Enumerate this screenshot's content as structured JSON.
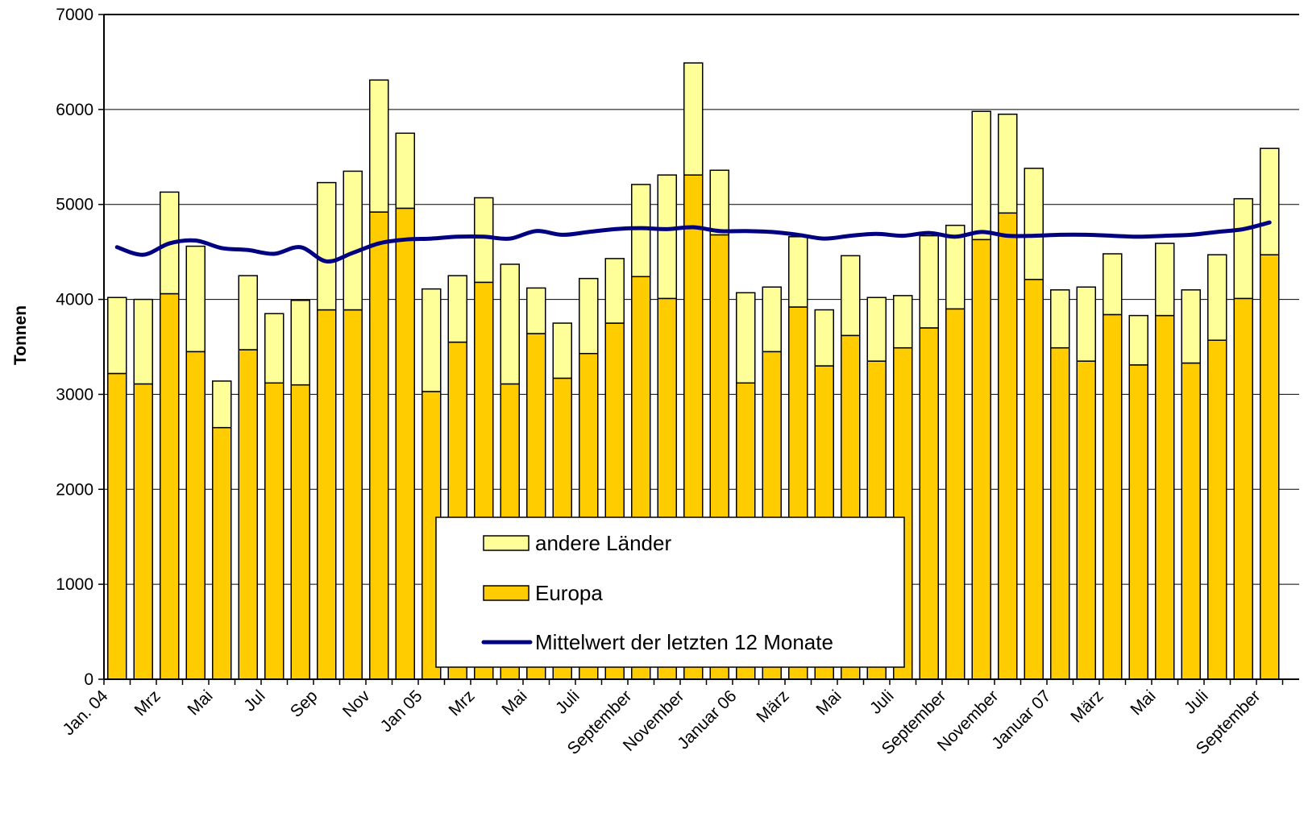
{
  "chart_data": {
    "type": "bar",
    "stacked": true,
    "ylabel": "Tonnen",
    "xlabel": "",
    "ylim": [
      0,
      7000
    ],
    "yticks": [
      0,
      1000,
      2000,
      3000,
      4000,
      5000,
      6000,
      7000
    ],
    "grid": true,
    "legend_position": "bottom-center",
    "tick_labels": [
      "Jan. 04",
      "Mrz",
      "Mai",
      "Jul",
      "Sep",
      "Nov",
      "Jan 05",
      "Mrz",
      "Mai",
      "Juli",
      "September",
      "November",
      "Januar 06",
      "März",
      "Mai",
      "Juli",
      "September",
      "November",
      "Januar 07",
      "März",
      "Mai",
      "Juli",
      "September"
    ],
    "tick_every": 2,
    "series": [
      {
        "name": "Europa",
        "color": "#FFCC00",
        "values": [
          3220,
          3110,
          4060,
          3450,
          2650,
          3470,
          3120,
          3100,
          3890,
          3890,
          4920,
          4960,
          3030,
          3550,
          4180,
          3110,
          3640,
          3170,
          3430,
          3750,
          4240,
          4010,
          5310,
          4680,
          3120,
          3450,
          3920,
          3300,
          3620,
          3350,
          3490,
          3700,
          3900,
          4630,
          4910,
          4210,
          3490,
          3350,
          3840,
          3310,
          3830,
          3330,
          3570,
          4010,
          4470
        ]
      },
      {
        "name": "andere Länder",
        "color": "#FFFF99",
        "values": [
          800,
          890,
          1070,
          1110,
          490,
          780,
          730,
          890,
          1340,
          1460,
          1390,
          790,
          1080,
          700,
          890,
          1260,
          480,
          580,
          790,
          680,
          970,
          1300,
          1180,
          680,
          950,
          680,
          740,
          590,
          840,
          670,
          550,
          970,
          880,
          1350,
          1040,
          1170,
          610,
          780,
          640,
          520,
          760,
          770,
          900,
          1050,
          1120
        ]
      },
      {
        "name": "Mittelwert der letzten 12 Monate",
        "type": "line",
        "color": "#000080",
        "values": [
          4550,
          4470,
          4590,
          4620,
          4540,
          4520,
          4480,
          4550,
          4400,
          4490,
          4590,
          4630,
          4640,
          4660,
          4660,
          4640,
          4720,
          4680,
          4710,
          4740,
          4750,
          4740,
          4760,
          4720,
          4720,
          4710,
          4680,
          4640,
          4670,
          4690,
          4670,
          4700,
          4660,
          4710,
          4670,
          4670,
          4680,
          4680,
          4670,
          4660,
          4670,
          4680,
          4710,
          4740,
          4810
        ]
      }
    ],
    "legend": [
      {
        "label": "andere Länder",
        "swatch": "box",
        "color": "#FFFF99"
      },
      {
        "label": "Europa",
        "swatch": "box",
        "color": "#FFCC00"
      },
      {
        "label": "Mittelwert der letzten 12 Monate",
        "swatch": "line",
        "color": "#000080"
      }
    ]
  }
}
